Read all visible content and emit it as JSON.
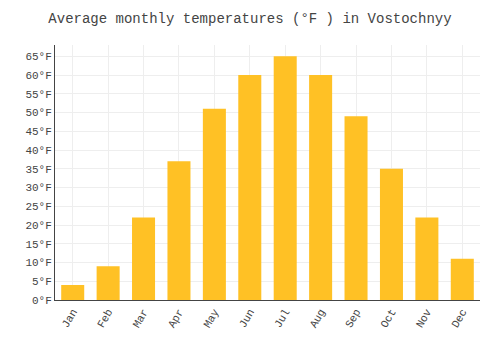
{
  "chart_data": {
    "type": "bar",
    "title": "Average monthly temperatures (°F ) in Vostochnyy",
    "categories": [
      "Jan",
      "Feb",
      "Mar",
      "Apr",
      "May",
      "Jun",
      "Jul",
      "Aug",
      "Sep",
      "Oct",
      "Nov",
      "Dec"
    ],
    "values": [
      4,
      9,
      22,
      37,
      51,
      60,
      65,
      60,
      49,
      35,
      22,
      11
    ],
    "color": "#FFC125",
    "ylim": [
      0,
      68
    ],
    "yticks": [
      {
        "value": 0,
        "label": "0°F"
      },
      {
        "value": 5,
        "label": "5°F"
      },
      {
        "value": 10,
        "label": "10°F"
      },
      {
        "value": 15,
        "label": "15°F"
      },
      {
        "value": 20,
        "label": "20°F"
      },
      {
        "value": 25,
        "label": "25°F"
      },
      {
        "value": 30,
        "label": "30°F"
      },
      {
        "value": 35,
        "label": "35°F"
      },
      {
        "value": 40,
        "label": "40°F"
      },
      {
        "value": 45,
        "label": "45°F"
      },
      {
        "value": 50,
        "label": "50°F"
      },
      {
        "value": 55,
        "label": "55°F"
      },
      {
        "value": 60,
        "label": "60°F"
      },
      {
        "value": 65,
        "label": "65°F"
      }
    ],
    "grid": true
  }
}
